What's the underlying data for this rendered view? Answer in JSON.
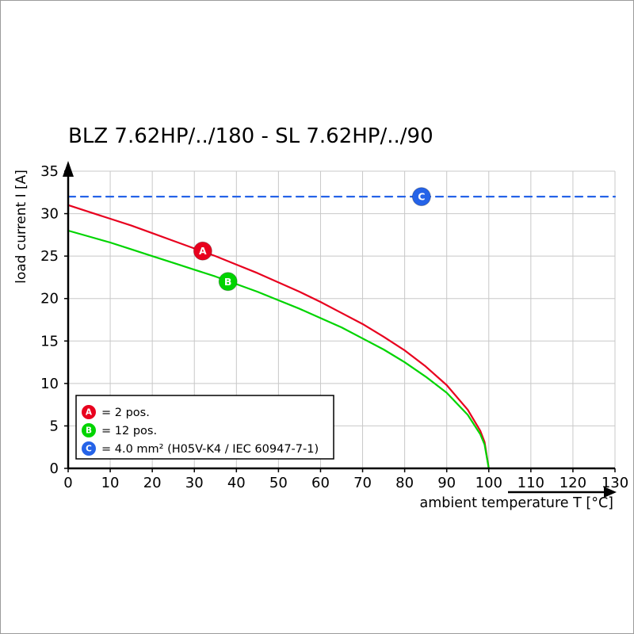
{
  "page": {
    "background": "#ffffff",
    "border_color": "#9b9b9b"
  },
  "chart_data": {
    "type": "line",
    "title": "BLZ 7.62HP/../180 - SL 7.62HP/../90",
    "xlabel": "ambient temperature T [°C]",
    "ylabel": "load current I [A]",
    "xlim": [
      0,
      130
    ],
    "ylim": [
      0,
      35
    ],
    "xticks": [
      0,
      10,
      20,
      30,
      40,
      50,
      60,
      70,
      80,
      90,
      100,
      110,
      120,
      130
    ],
    "yticks": [
      0,
      5,
      10,
      15,
      20,
      25,
      30,
      35
    ],
    "grid": true,
    "legend_position": "lower-left",
    "colors": {
      "grid": "#c8c8c8",
      "axis": "#000000",
      "marker_text": "#ffffff"
    },
    "series": [
      {
        "name": "A",
        "legend_label": "= 2 pos.",
        "color": "#e8001e",
        "style": "solid",
        "marker": {
          "x": 32,
          "y": 25.6,
          "label": "A"
        },
        "points": [
          [
            0,
            31
          ],
          [
            5,
            30.2
          ],
          [
            10,
            29.4
          ],
          [
            15,
            28.6
          ],
          [
            20,
            27.7
          ],
          [
            25,
            26.8
          ],
          [
            30,
            25.9
          ],
          [
            35,
            25.0
          ],
          [
            40,
            24.0
          ],
          [
            45,
            23.0
          ],
          [
            50,
            21.9
          ],
          [
            55,
            20.8
          ],
          [
            60,
            19.6
          ],
          [
            65,
            18.3
          ],
          [
            70,
            17.0
          ],
          [
            75,
            15.5
          ],
          [
            80,
            13.9
          ],
          [
            85,
            12.0
          ],
          [
            90,
            9.8
          ],
          [
            95,
            6.9
          ],
          [
            98,
            4.4
          ],
          [
            99,
            3.1
          ],
          [
            100,
            0
          ]
        ]
      },
      {
        "name": "B",
        "legend_label": "= 12 pos.",
        "color": "#00d400",
        "style": "solid",
        "marker": {
          "x": 38,
          "y": 22.0,
          "label": "B"
        },
        "points": [
          [
            0,
            28
          ],
          [
            5,
            27.3
          ],
          [
            10,
            26.6
          ],
          [
            15,
            25.8
          ],
          [
            20,
            25.0
          ],
          [
            25,
            24.2
          ],
          [
            30,
            23.4
          ],
          [
            35,
            22.6
          ],
          [
            40,
            21.7
          ],
          [
            45,
            20.8
          ],
          [
            50,
            19.8
          ],
          [
            55,
            18.8
          ],
          [
            60,
            17.7
          ],
          [
            65,
            16.6
          ],
          [
            70,
            15.3
          ],
          [
            75,
            14.0
          ],
          [
            80,
            12.5
          ],
          [
            85,
            10.8
          ],
          [
            90,
            8.9
          ],
          [
            95,
            6.3
          ],
          [
            98,
            4.0
          ],
          [
            99,
            2.8
          ],
          [
            100,
            0
          ]
        ]
      },
      {
        "name": "C",
        "legend_label": "= 4.0 mm² (H05V-K4 / IEC 60947-7-1)",
        "color": "#2563e8",
        "style": "dashed",
        "marker": {
          "x": 84,
          "y": 32,
          "label": "C"
        },
        "points": [
          [
            0,
            32
          ],
          [
            130,
            32
          ]
        ]
      }
    ]
  }
}
